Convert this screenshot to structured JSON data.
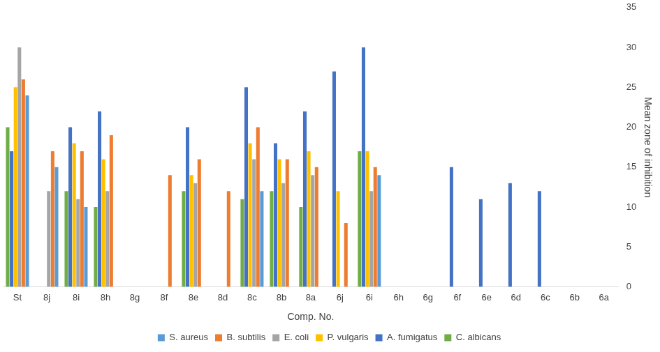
{
  "chart_data": {
    "type": "bar",
    "x_label": "Comp. No.",
    "y_label": "Mean zone of inhibition",
    "categories": [
      "St",
      "8j",
      "8i",
      "8h",
      "8g",
      "8f",
      "8e",
      "8d",
      "8c",
      "8b",
      "8a",
      "6j",
      "6i",
      "6h",
      "6g",
      "6f",
      "6e",
      "6d",
      "6c",
      "6b",
      "6a"
    ],
    "series": [
      {
        "name": "S. aureus",
        "color": "#5b9bd5",
        "values": [
          24,
          15,
          10,
          0,
          0,
          0,
          0,
          0,
          12,
          0,
          0,
          0,
          14,
          0,
          0,
          0,
          0,
          0,
          0,
          0,
          0
        ]
      },
      {
        "name": "B. subtilis",
        "color": "#ed7d31",
        "values": [
          26,
          17,
          17,
          19,
          0,
          14,
          16,
          12,
          20,
          16,
          15,
          8,
          15,
          0,
          0,
          0,
          0,
          0,
          0,
          0,
          0
        ]
      },
      {
        "name": "E. coli",
        "color": "#a5a5a5",
        "values": [
          30,
          12,
          11,
          12,
          0,
          0,
          13,
          0,
          16,
          13,
          14,
          0,
          12,
          0,
          0,
          0,
          0,
          0,
          0,
          0,
          0
        ]
      },
      {
        "name": "P. vulgaris",
        "color": "#ffc000",
        "values": [
          25,
          0,
          18,
          16,
          0,
          0,
          14,
          0,
          18,
          16,
          17,
          12,
          17,
          0,
          0,
          0,
          0,
          0,
          0,
          0,
          0
        ]
      },
      {
        "name": "A. fumigatus",
        "color": "#4472c4",
        "values": [
          17,
          0,
          20,
          22,
          0,
          0,
          20,
          0,
          25,
          18,
          22,
          27,
          30,
          0,
          0,
          15,
          11,
          13,
          12,
          0,
          0
        ]
      },
      {
        "name": "C. albicans",
        "color": "#70ad47",
        "values": [
          20,
          0,
          12,
          10,
          0,
          0,
          12,
          0,
          11,
          12,
          10,
          0,
          17,
          0,
          0,
          0,
          0,
          0,
          0,
          0,
          0
        ]
      }
    ],
    "ylim": [
      0,
      35
    ],
    "yticks": [
      0,
      5,
      10,
      15,
      20,
      25,
      30,
      35
    ],
    "grid": false,
    "legend": "bottom"
  }
}
